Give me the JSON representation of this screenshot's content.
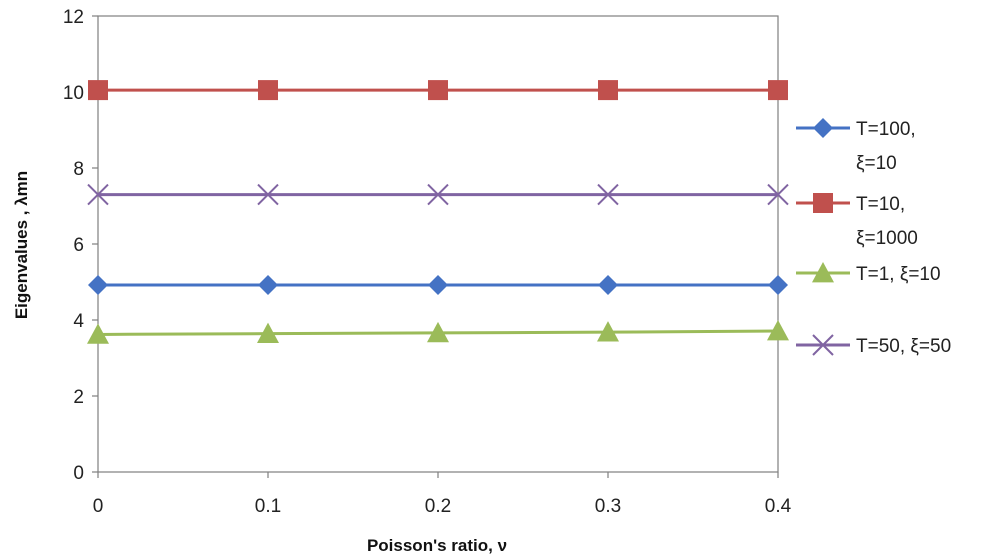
{
  "chart_data": {
    "type": "line",
    "title": "",
    "xlabel": "Poisson's ratio, ν",
    "ylabel": "Eigenvalues , λmn",
    "x": [
      0,
      0.1,
      0.2,
      0.3,
      0.4
    ],
    "x_tick_labels": [
      "0",
      "0.1",
      "0.2",
      "0.3",
      "0.4"
    ],
    "ylim": [
      0,
      12
    ],
    "y_ticks": [
      0,
      2,
      4,
      6,
      8,
      10,
      12
    ],
    "grid": false,
    "legend_position": "right",
    "series": [
      {
        "name": "T=100, ξ=10",
        "legend_lines": [
          "T=100,",
          "ξ=10"
        ],
        "color": "#4472C4",
        "marker": "diamond",
        "values": [
          4.92,
          4.92,
          4.92,
          4.92,
          4.92
        ]
      },
      {
        "name": "T=10, ξ=1000",
        "legend_lines": [
          "T=10,",
          "ξ=1000"
        ],
        "color": "#C0504D",
        "marker": "square",
        "values": [
          10.05,
          10.05,
          10.05,
          10.05,
          10.05
        ]
      },
      {
        "name": "T=1, ξ=10",
        "legend_lines": [
          "T=1, ξ=10"
        ],
        "color": "#9BBB59",
        "marker": "triangle",
        "values": [
          3.62,
          3.64,
          3.66,
          3.68,
          3.71
        ]
      },
      {
        "name": "T=50, ξ=50",
        "legend_lines": [
          "T=50, ξ=50"
        ],
        "color": "#8064A2",
        "marker": "x",
        "values": [
          7.3,
          7.3,
          7.3,
          7.3,
          7.3
        ]
      }
    ]
  }
}
